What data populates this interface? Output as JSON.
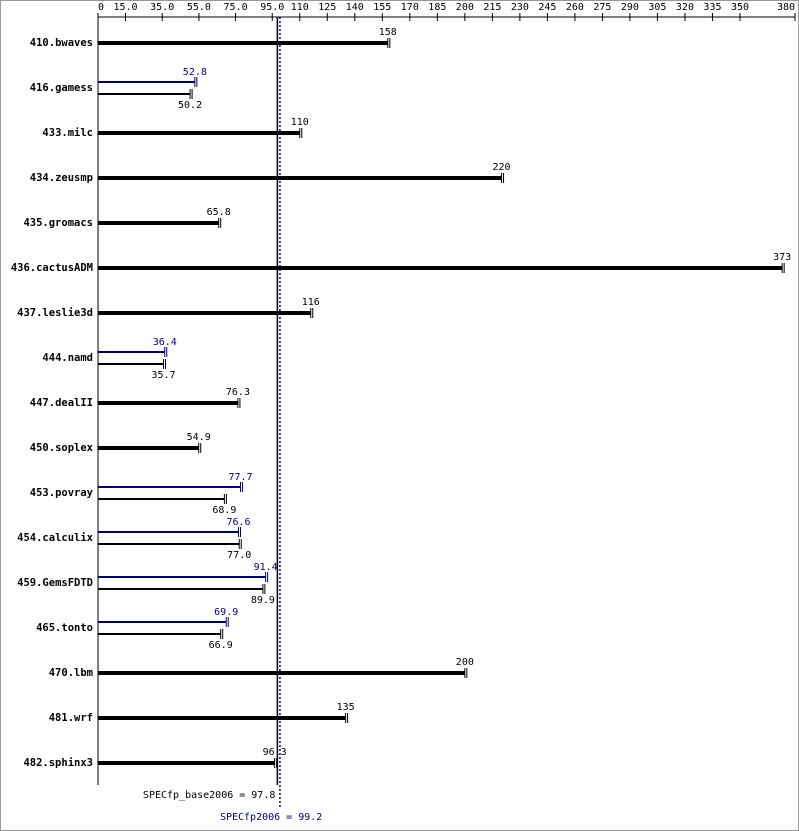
{
  "chart_data": {
    "type": "bar",
    "orientation": "horizontal",
    "categories": [
      "410.bwaves",
      "416.gamess",
      "433.milc",
      "434.zeusmp",
      "435.gromacs",
      "436.cactusADM",
      "437.leslie3d",
      "444.namd",
      "447.dealII",
      "450.soplex",
      "453.povray",
      "454.calculix",
      "459.GemsFDTD",
      "465.tonto",
      "470.lbm",
      "481.wrf",
      "482.sphinx3"
    ],
    "series": [
      {
        "color": "#000080",
        "values": [
          null,
          52.8,
          null,
          null,
          null,
          null,
          null,
          36.4,
          null,
          null,
          77.7,
          76.6,
          91.4,
          69.9,
          null,
          null,
          null
        ],
        "value_labels": [
          null,
          "52.8",
          null,
          null,
          null,
          null,
          null,
          "36.4",
          null,
          null,
          "77.7",
          "76.6",
          "91.4",
          "69.9",
          null,
          null,
          null
        ]
      },
      {
        "color": "#000000",
        "values": [
          158,
          50.2,
          110,
          220,
          65.8,
          373,
          116,
          35.7,
          76.3,
          54.9,
          68.9,
          77.0,
          89.9,
          66.9,
          200,
          135,
          96.3
        ],
        "value_labels": [
          "158",
          "50.2",
          "110",
          "220",
          "65.8",
          "373",
          "116",
          "35.7",
          "76.3",
          "54.9",
          "68.9",
          "77.0",
          "89.9",
          "66.9",
          "200",
          "135",
          "96.3"
        ]
      }
    ],
    "xlim": [
      0,
      380
    ],
    "xticks": [
      0,
      {
        "value": 15,
        "label": "15.0"
      },
      {
        "value": 35,
        "label": "35.0"
      },
      {
        "value": 55,
        "label": "55.0"
      },
      {
        "value": 75,
        "label": "75.0"
      },
      {
        "value": 95,
        "label": "95.0"
      },
      110,
      125,
      140,
      155,
      170,
      185,
      200,
      215,
      230,
      245,
      260,
      275,
      290,
      305,
      320,
      335,
      350,
      380
    ],
    "reference_lines": [
      {
        "value": 97.8,
        "label": "SPECfp_base2006 = 97.8",
        "color": "#000000"
      },
      {
        "value": 99.2,
        "label": "SPECfp2006 = 99.2",
        "color": "#000080"
      }
    ]
  }
}
